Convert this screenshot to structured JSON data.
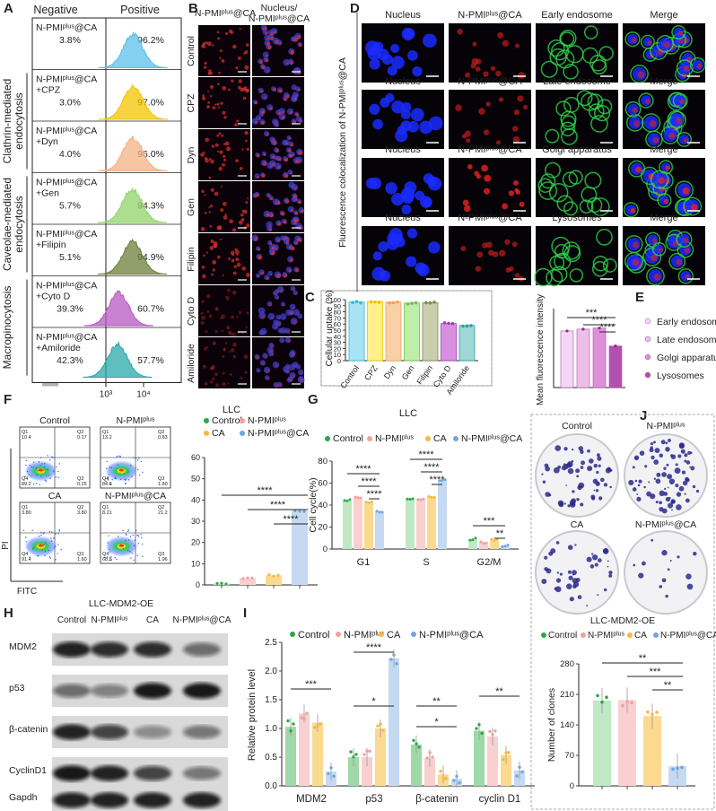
{
  "panel_labels": [
    "A",
    "B",
    "C",
    "D",
    "E",
    "F",
    "G",
    "H",
    "I",
    "J"
  ],
  "panelA": {
    "header_negative": "Negative",
    "header_positive": "Positive",
    "group_labels": [
      "Clathrin-mediated endocytosis",
      "Caveolae-mediated endocytosis",
      "Macropinocytosis"
    ],
    "axis_ticks": [
      "10³",
      "10⁴"
    ],
    "rows": [
      {
        "label1": "N-PMIᵖˡᵘˢ@CA",
        "label2": "",
        "neg": "3.8%",
        "pos": "96.2%",
        "color": "#5bc0eb"
      },
      {
        "label1": "N-PMIᵖˡᵘˢ@CA",
        "label2": "+CPZ",
        "neg": "3.0%",
        "pos": "97.0%",
        "color": "#f5c400"
      },
      {
        "label1": "N-PMIᵖˡᵘˢ@CA",
        "label2": "+Dyn",
        "neg": "4.0%",
        "pos": "96.0%",
        "color": "#f4b183"
      },
      {
        "label1": "N-PMIᵖˡᵘˢ@CA",
        "label2": "+Gen",
        "neg": "5.7%",
        "pos": "94.3%",
        "color": "#8fd36a"
      },
      {
        "label1": "N-PMIᵖˡᵘˢ@CA",
        "label2": "+Filipin",
        "neg": "5.1%",
        "pos": "94.9%",
        "color": "#6b7f3a"
      },
      {
        "label1": "N-PMIᵖˡᵘˢ@CA",
        "label2": "+Cyto D",
        "neg": "39.3%",
        "pos": "60.7%",
        "color": "#b757c2"
      },
      {
        "label1": "N-PMIᵖˡᵘˢ@CA",
        "label2": "+Amiloride",
        "neg": "42.3%",
        "pos": "57.7%",
        "color": "#2aa8a8"
      }
    ]
  },
  "panelB": {
    "col_headers": [
      "N-PMIᵖˡᵘˢ@CA",
      "Nucleus/",
      "N-PMIᵖˡᵘˢ@CA"
    ],
    "rows": [
      "Control",
      "CPZ",
      "Dyn",
      "Gen",
      "Filipin",
      "Cyto D",
      "Amiloride"
    ]
  },
  "panelC": {
    "type": "bar",
    "ylabel": "Cellular uptake (%)",
    "yticks": [
      "0",
      "10",
      "20",
      "30",
      "40",
      "50",
      "60",
      "70",
      "80",
      "90",
      "100"
    ],
    "ylim": [
      0,
      100
    ],
    "categories": [
      "Control",
      "CPZ",
      "Dyn",
      "Gen",
      "Filipin",
      "Cyto D",
      "Amiloride"
    ],
    "values": [
      96.2,
      97.0,
      96.0,
      94.3,
      94.9,
      60.7,
      57.7
    ],
    "colors": [
      "#a8e3f5",
      "#fff08a",
      "#f9cfa6",
      "#bfeeab",
      "#c9cfae",
      "#d98fe0",
      "#9fd6d6"
    ],
    "edge_colors": [
      "#38b6e0",
      "#e8c700",
      "#f29e5a",
      "#6fc24a",
      "#7d8a4f",
      "#a040b0",
      "#2aa0a0"
    ]
  },
  "panelD": {
    "side_label": "Fluorescence colocalization of N-PMIᵖˡᵘˢ@CA",
    "rows": [
      [
        "Nucleus",
        "N-PMIᵖˡᵘˢ@CA",
        "Early endosome",
        "Merge"
      ],
      [
        "Nucleus",
        "N-PMIᵖˡᵘˢ@CA",
        "Late endosome",
        "Merge"
      ],
      [
        "Nucleus",
        "N-PMIᵖˡᵘˢ@CA",
        "Golgi apparatus",
        "Merge"
      ],
      [
        "Nucleus",
        "N-PMIᵖˡᵘˢ@CA",
        "Lysosomes",
        "Merge"
      ]
    ]
  },
  "panelE": {
    "type": "bar",
    "ylabel": "Mean fluorescence intensity",
    "categories": [
      "Early endosome",
      "Late endosome",
      "Golgi apparatus",
      "Lysosomes"
    ],
    "values": [
      215,
      222,
      226,
      158
    ],
    "ylim": [
      0,
      300
    ],
    "colors": [
      "#f4d7f2",
      "#ecbfe9",
      "#dd8fd9",
      "#b24fb0"
    ],
    "sig": [
      "***",
      "****",
      "****"
    ]
  },
  "panelF": {
    "title": "LLC",
    "flow_titles": [
      "Control",
      "N-PMIᵖˡᵘˢ",
      "CA",
      "N-PMIᵖˡᵘˢ@CA"
    ],
    "y_axis": "PI",
    "x_axis": "FITC",
    "quadrants": [
      {
        "q1": "Q1\n10.4",
        "q2": "Q2\n0.17",
        "q3": "Q4\n89.2",
        "q4": "Q3\n0.25"
      },
      {
        "q1": "Q1\n13.2",
        "q2": "Q2\n0.83",
        "q3": "Q4\n84.8",
        "q4": "Q3\n1.80"
      },
      {
        "q1": "Q1\n3.80",
        "q2": "Q2\n3.80",
        "q3": "Q4\n91.4",
        "q4": "Q3\n1.60"
      },
      {
        "q1": "Q1\n8.21",
        "q2": "Q2\n21.2",
        "q3": "Q4\n68.5",
        "q4": "Q3\n1.96"
      }
    ],
    "legend": [
      "Control",
      "N-PMIᵖˡᵘˢ",
      "CA",
      "N-PMIᵖˡᵘˢ@CA"
    ],
    "legend_colors": [
      "#2aa84a",
      "#f4a0a0",
      "#f5b942",
      "#6fa6e0"
    ],
    "yticks": [
      "0",
      "10",
      "20",
      "30",
      "40",
      "50",
      "60"
    ],
    "ylim": [
      0,
      60
    ],
    "values": [
      0.5,
      3.2,
      4.5,
      35.0
    ],
    "bar_colors": [
      "#bfe8c4",
      "#f9d0cf",
      "#fbd98f",
      "#c5d9f2"
    ],
    "sig": [
      "****",
      "****",
      "****"
    ]
  },
  "panelG": {
    "title": "LLC",
    "legend": [
      "Control",
      "N-PMIᵖˡᵘˢ",
      "CA",
      "N-PMIᵖˡᵘˢ@CA"
    ],
    "legend_colors": [
      "#2aa84a",
      "#f4a0a0",
      "#f5b942",
      "#6fa6e0"
    ],
    "ylabel": "Cell cycle(%)",
    "yticks": [
      "0",
      "20",
      "40",
      "60",
      "80"
    ],
    "ylim": [
      0,
      80
    ],
    "categories": [
      "G1",
      "S",
      "G2/M"
    ],
    "series": [
      {
        "name": "Control",
        "values": [
          44,
          46,
          9
        ]
      },
      {
        "name": "N-PMIᵖˡᵘˢ",
        "values": [
          47,
          46,
          6
        ]
      },
      {
        "name": "CA",
        "values": [
          43,
          48,
          8
        ]
      },
      {
        "name": "N-PMIᵖˡᵘˢ@CA",
        "values": [
          34,
          63,
          3
        ]
      }
    ],
    "bar_colors": [
      "#bfe8c4",
      "#f9d0cf",
      "#fbd98f",
      "#c5d9f2"
    ],
    "sig": [
      "****",
      "****",
      "****",
      "****",
      "****",
      "****",
      "***",
      "**"
    ]
  },
  "panelH": {
    "title": "LLC-MDM2-OE",
    "columns": [
      "Control",
      "N-PMIᵖˡᵘˢ",
      "CA",
      "N-PMIᵖˡᵘˢ@CA"
    ],
    "rows": [
      "MDM2",
      "p53",
      "β-catenin",
      "CyclinD1",
      "Gapdh"
    ],
    "band_intensity": [
      [
        0.9,
        0.85,
        0.85,
        0.55
      ],
      [
        0.55,
        0.45,
        0.95,
        0.95
      ],
      [
        0.9,
        0.75,
        0.4,
        0.5
      ],
      [
        0.95,
        0.9,
        0.75,
        0.5
      ],
      [
        0.9,
        0.9,
        0.9,
        0.9
      ]
    ]
  },
  "panelI": {
    "legend": [
      "Control",
      "N-PMIᵖˡᵘˢ",
      "CA",
      "N-PMIᵖˡᵘˢ@CA"
    ],
    "legend_colors": [
      "#2aa84a",
      "#f4a0a0",
      "#f5b942",
      "#6fa6e0"
    ],
    "ylabel": "Relative protein level",
    "yticks": [
      "0.0",
      "0.5",
      "1.0",
      "1.5",
      "2.0",
      "2.5"
    ],
    "ylim": [
      0,
      2.5
    ],
    "categories": [
      "MDM2",
      "p53",
      "β-catenin",
      "cyclin D1"
    ],
    "series": [
      {
        "name": "Control",
        "values": [
          1.03,
          0.5,
          0.72,
          0.96
        ]
      },
      {
        "name": "N-PMIᵖˡᵘˢ",
        "values": [
          1.26,
          0.5,
          0.48,
          0.86
        ]
      },
      {
        "name": "CA",
        "values": [
          1.1,
          1.0,
          0.2,
          0.54
        ]
      },
      {
        "name": "N-PMIᵖˡᵘˢ@CA",
        "values": [
          0.25,
          2.22,
          0.12,
          0.27
        ]
      }
    ],
    "bar_colors": [
      "#9fd9a8",
      "#f9cfcf",
      "#fbd98f",
      "#c5d9f2"
    ],
    "sig": [
      "***",
      "*",
      "****",
      "*",
      "**",
      "**"
    ]
  },
  "panelJ": {
    "dish_titles": [
      "Control",
      "N-PMIᵖˡᵘˢ",
      "CA",
      "N-PMIᵖˡᵘˢ@CA"
    ],
    "subtitle": "LLC-MDM2-OE",
    "legend": [
      "Control",
      "N-PMIᵖˡᵘˢ",
      "CA",
      "N-PMIᵖˡᵘˢ@CA"
    ],
    "legend_colors": [
      "#2aa84a",
      "#f4a0a0",
      "#f5b942",
      "#6fa6e0"
    ],
    "ylabel": "Number of clones",
    "yticks": [
      "0",
      "70",
      "140",
      "210",
      "280"
    ],
    "ylim": [
      0,
      280
    ],
    "values": [
      196,
      197,
      160,
      45
    ],
    "bar_colors": [
      "#bfe8c4",
      "#f9d0cf",
      "#fbd98f",
      "#c5d9f2"
    ],
    "sig": [
      "**",
      "***",
      "**"
    ]
  }
}
